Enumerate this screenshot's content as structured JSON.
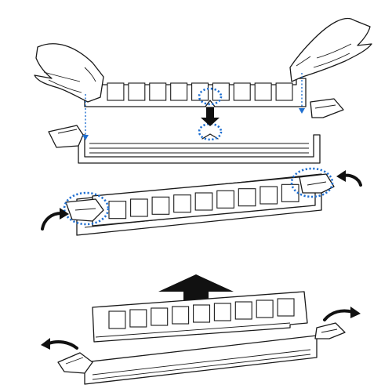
{
  "diagram": {
    "kind": "memory-module-installation-illustration",
    "steps": [
      {
        "step": "insert",
        "arrow_direction": "down"
      },
      {
        "step": "lock",
        "rotation_arrows": "inward"
      },
      {
        "step": "remove",
        "arrow_direction": "up",
        "rotation_arrows": "outward"
      }
    ],
    "chip_count_per_module": 9,
    "colors": {
      "line": "#1a1a1a",
      "highlight_dotted": "#1f6fd1",
      "fill": "#ffffff",
      "arrow_fill": "#111111"
    }
  }
}
